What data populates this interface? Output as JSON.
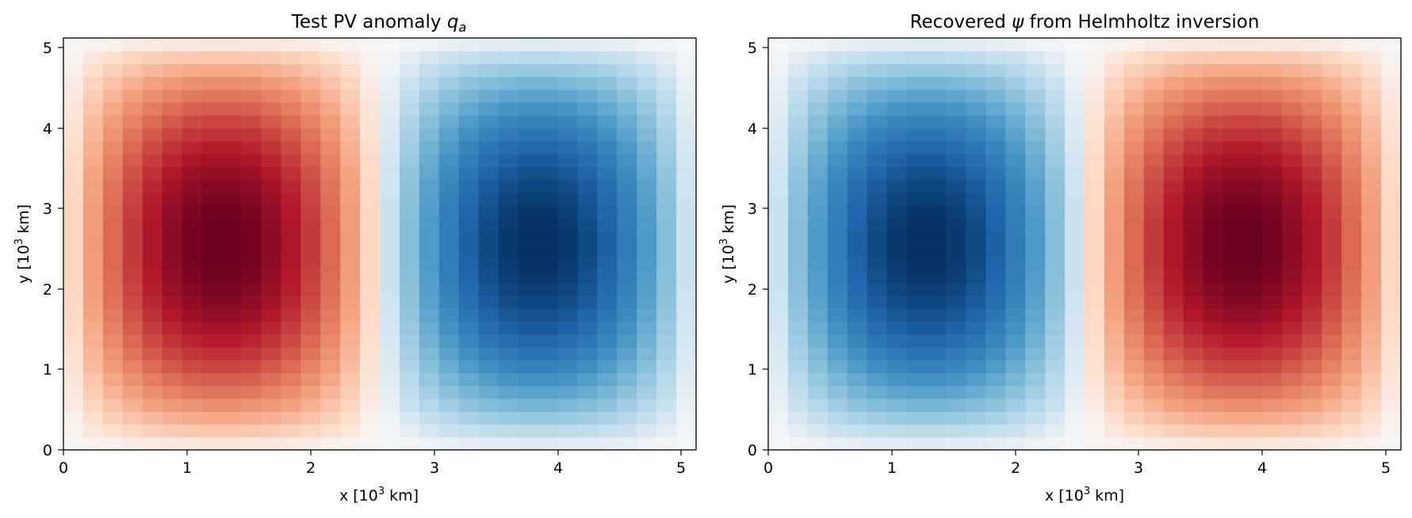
{
  "chart_data": [
    {
      "type": "heatmap",
      "title_prefix": "Test PV anomaly ",
      "title_symbol": "q",
      "title_subscript": "a",
      "xlabel_prefix": "x [10",
      "xlabel_exponent": "3",
      "xlabel_suffix": " km]",
      "ylabel_prefix": "y [10",
      "ylabel_exponent": "3",
      "ylabel_suffix": " km]",
      "xlim": [
        0,
        5.12
      ],
      "ylim": [
        0,
        5.12
      ],
      "x_ticks": [
        "0",
        "1",
        "2",
        "3",
        "4",
        "5"
      ],
      "y_ticks": [
        "0",
        "1",
        "2",
        "3",
        "4",
        "5"
      ],
      "grid_cells": 32,
      "colormap": "RdBu_r",
      "field": "sin(2*pi*x/L) * sin(pi*y/L)",
      "color_scale": 1.0,
      "low_color": "#053061",
      "mid_color": "#f7f7f7",
      "high_color": "#67001f"
    },
    {
      "type": "heatmap",
      "title_prefix": "Recovered ",
      "title_symbol": "ψ",
      "title_suffix": " from Helmholtz inversion",
      "xlabel_prefix": "x [10",
      "xlabel_exponent": "3",
      "xlabel_suffix": " km]",
      "ylabel_prefix": "y [10",
      "ylabel_exponent": "3",
      "ylabel_suffix": " km]",
      "xlim": [
        0,
        5.12
      ],
      "ylim": [
        0,
        5.12
      ],
      "x_ticks": [
        "0",
        "1",
        "2",
        "3",
        "4",
        "5"
      ],
      "y_ticks": [
        "0",
        "1",
        "2",
        "3",
        "4",
        "5"
      ],
      "grid_cells": 32,
      "colormap": "RdBu_r",
      "field": "sin(2*pi*x/L) * sin(pi*y/L)",
      "color_scale": -1.0,
      "low_color": "#053061",
      "mid_color": "#f7f7f7",
      "high_color": "#67001f"
    }
  ]
}
